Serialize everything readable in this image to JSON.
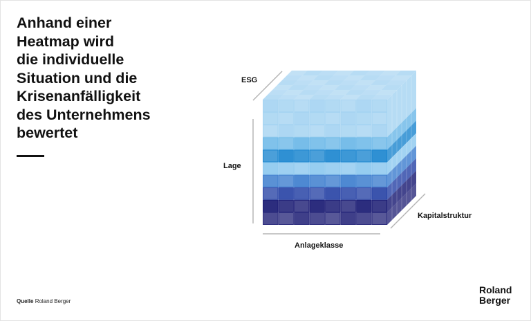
{
  "headline": "Anhand einer\nHeatmap wird\ndie individuelle\nSituation und die\nKrisenanfälligkeit\ndes Unternehmens\nbewertet",
  "axes": {
    "esg": "ESG",
    "lage": "Lage",
    "kapitalstruktur": "Kapitalstruktur",
    "anlageklasse": "Anlageklasse"
  },
  "source": {
    "label": "Quelle",
    "text": "Roland Berger"
  },
  "brand": {
    "line1": "Roland",
    "line2": "Berger"
  },
  "heatmap": {
    "columns": 8,
    "depth": 6,
    "layer_colors": [
      "#a6d4f2",
      "#6cb8e8",
      "#1e87d0",
      "#8ec9ef",
      "#3f7fcf",
      "#2b46a7",
      "#1b1c74",
      "#2f2f7f"
    ],
    "layer_heights": [
      3,
      1,
      1,
      1,
      1,
      1,
      1,
      1
    ]
  }
}
